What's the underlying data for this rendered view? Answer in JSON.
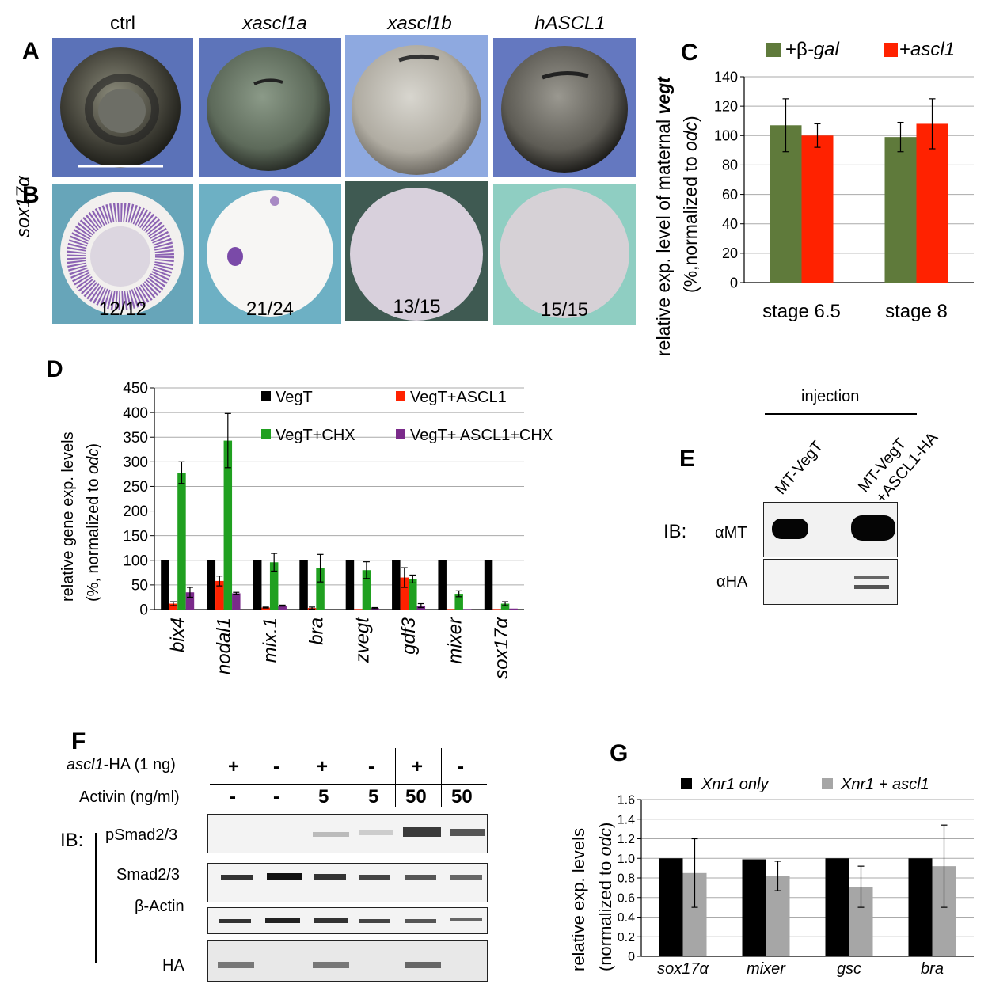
{
  "panels": {
    "A": "A",
    "B": "B",
    "C": "C",
    "D": "D",
    "E": "E",
    "F": "F",
    "G": "G"
  },
  "embryo_columns": [
    {
      "label": "ctrl",
      "italic": false,
      "count": "12/12"
    },
    {
      "label": "xascl1a",
      "italic": true,
      "count": "21/24"
    },
    {
      "label": "xascl1b",
      "italic": true,
      "count": "13/15"
    },
    {
      "label": "hASCL1",
      "italic": true,
      "count": "15/15"
    }
  ],
  "row_b_label": "sox17α",
  "chart_data": [
    {
      "id": "C",
      "type": "bar",
      "categories": [
        "stage 6.5",
        "stage 8"
      ],
      "series": [
        {
          "name": "+β-gal",
          "values": [
            107,
            99
          ],
          "errors": [
            18,
            10
          ],
          "color": "#5f7a3b"
        },
        {
          "name": "+ascl1",
          "values": [
            100,
            108
          ],
          "errors": [
            8,
            17
          ],
          "color": "#ff2200"
        }
      ],
      "ylabel_prefix": "relative exp. level of maternal ",
      "ylabel_gene": "vegt",
      "ylabel2_prefix": "(%,normalized to ",
      "ylabel2_gene": "odc",
      "ylabel2_suffix": ")",
      "ylim": [
        0,
        140
      ],
      "yticks": [
        "0",
        "20",
        "40",
        "60",
        "80",
        "100",
        "120",
        "140"
      ]
    },
    {
      "id": "D",
      "type": "bar",
      "categories": [
        "bix4",
        "nodal1",
        "mix.1",
        "bra",
        "zvegt",
        "gdf3",
        "mixer",
        "sox17α"
      ],
      "series": [
        {
          "name": "VegT",
          "values": [
            100,
            100,
            100,
            100,
            100,
            100,
            100,
            100
          ],
          "errors": [
            0,
            0,
            0,
            0,
            0,
            0,
            0,
            0
          ],
          "color": "#000000"
        },
        {
          "name": "VegT+ASCL1",
          "values": [
            12,
            58,
            4,
            3,
            1,
            65,
            1,
            1
          ],
          "errors": [
            4,
            10,
            1,
            2,
            0,
            20,
            0,
            0
          ],
          "color": "#ff2200"
        },
        {
          "name": "VegT+CHX",
          "values": [
            278,
            343,
            96,
            84,
            80,
            62,
            32,
            12
          ],
          "errors": [
            22,
            55,
            18,
            28,
            17,
            8,
            6,
            4
          ],
          "color": "#20a020"
        },
        {
          "name": "VegT+ ASCL1+CHX",
          "values": [
            35,
            33,
            8,
            0,
            3,
            8,
            1,
            2
          ],
          "errors": [
            10,
            2,
            1,
            0,
            1,
            4,
            0,
            0
          ],
          "color": "#7a2a8a"
        }
      ],
      "ylabel": "relative gene exp. levels",
      "ylabel2_prefix": "(%, normalized to ",
      "ylabel2_gene": "odc",
      "ylabel2_suffix": ")",
      "ylim": [
        0,
        450
      ],
      "yticks": [
        "0",
        "50",
        "100",
        "150",
        "200",
        "250",
        "300",
        "350",
        "400",
        "450"
      ]
    },
    {
      "id": "G",
      "type": "bar",
      "categories": [
        "sox17α",
        "mixer",
        "gsc",
        "bra"
      ],
      "series": [
        {
          "name": "Xnr1 only",
          "values": [
            1.0,
            0.99,
            1.0,
            1.0
          ],
          "errors": [
            0,
            0,
            0,
            0
          ],
          "color": "#000000"
        },
        {
          "name": "Xnr1 + ascl1",
          "values": [
            0.85,
            0.82,
            0.71,
            0.92
          ],
          "errors": [
            0.35,
            0.15,
            0.21,
            0.42
          ],
          "color": "#a6a6a6"
        }
      ],
      "ylabel": "relative exp. levels",
      "ylabel2_prefix": "(normalized to ",
      "ylabel2_gene": "odc",
      "ylabel2_suffix": ")",
      "ylim": [
        0,
        1.6
      ],
      "yticks": [
        "0",
        "0.2",
        "0.4",
        "0.6",
        "0.8",
        "1.0",
        "1.2",
        "1.4",
        "1.6"
      ]
    }
  ],
  "panel_e": {
    "header": "injection",
    "lanes": [
      "MT-VegT",
      "MT-VegT",
      "+ASCL1-HA"
    ],
    "ib": "IB:",
    "rows": [
      "αMT",
      "αHA"
    ]
  },
  "panel_f": {
    "row1_label_gene": "ascl1",
    "row1_label_rest": "-HA (1 ng)",
    "row1_values": [
      "+",
      "-",
      "+",
      "-",
      "+",
      "-"
    ],
    "row2_label": "Activin (ng/ml)",
    "row2_values": [
      "-",
      "-",
      "5",
      "5",
      "50",
      "50"
    ],
    "ib": "IB:",
    "blots": [
      "pSmad2/3",
      "Smad2/3",
      "β-Actin",
      "HA"
    ]
  }
}
